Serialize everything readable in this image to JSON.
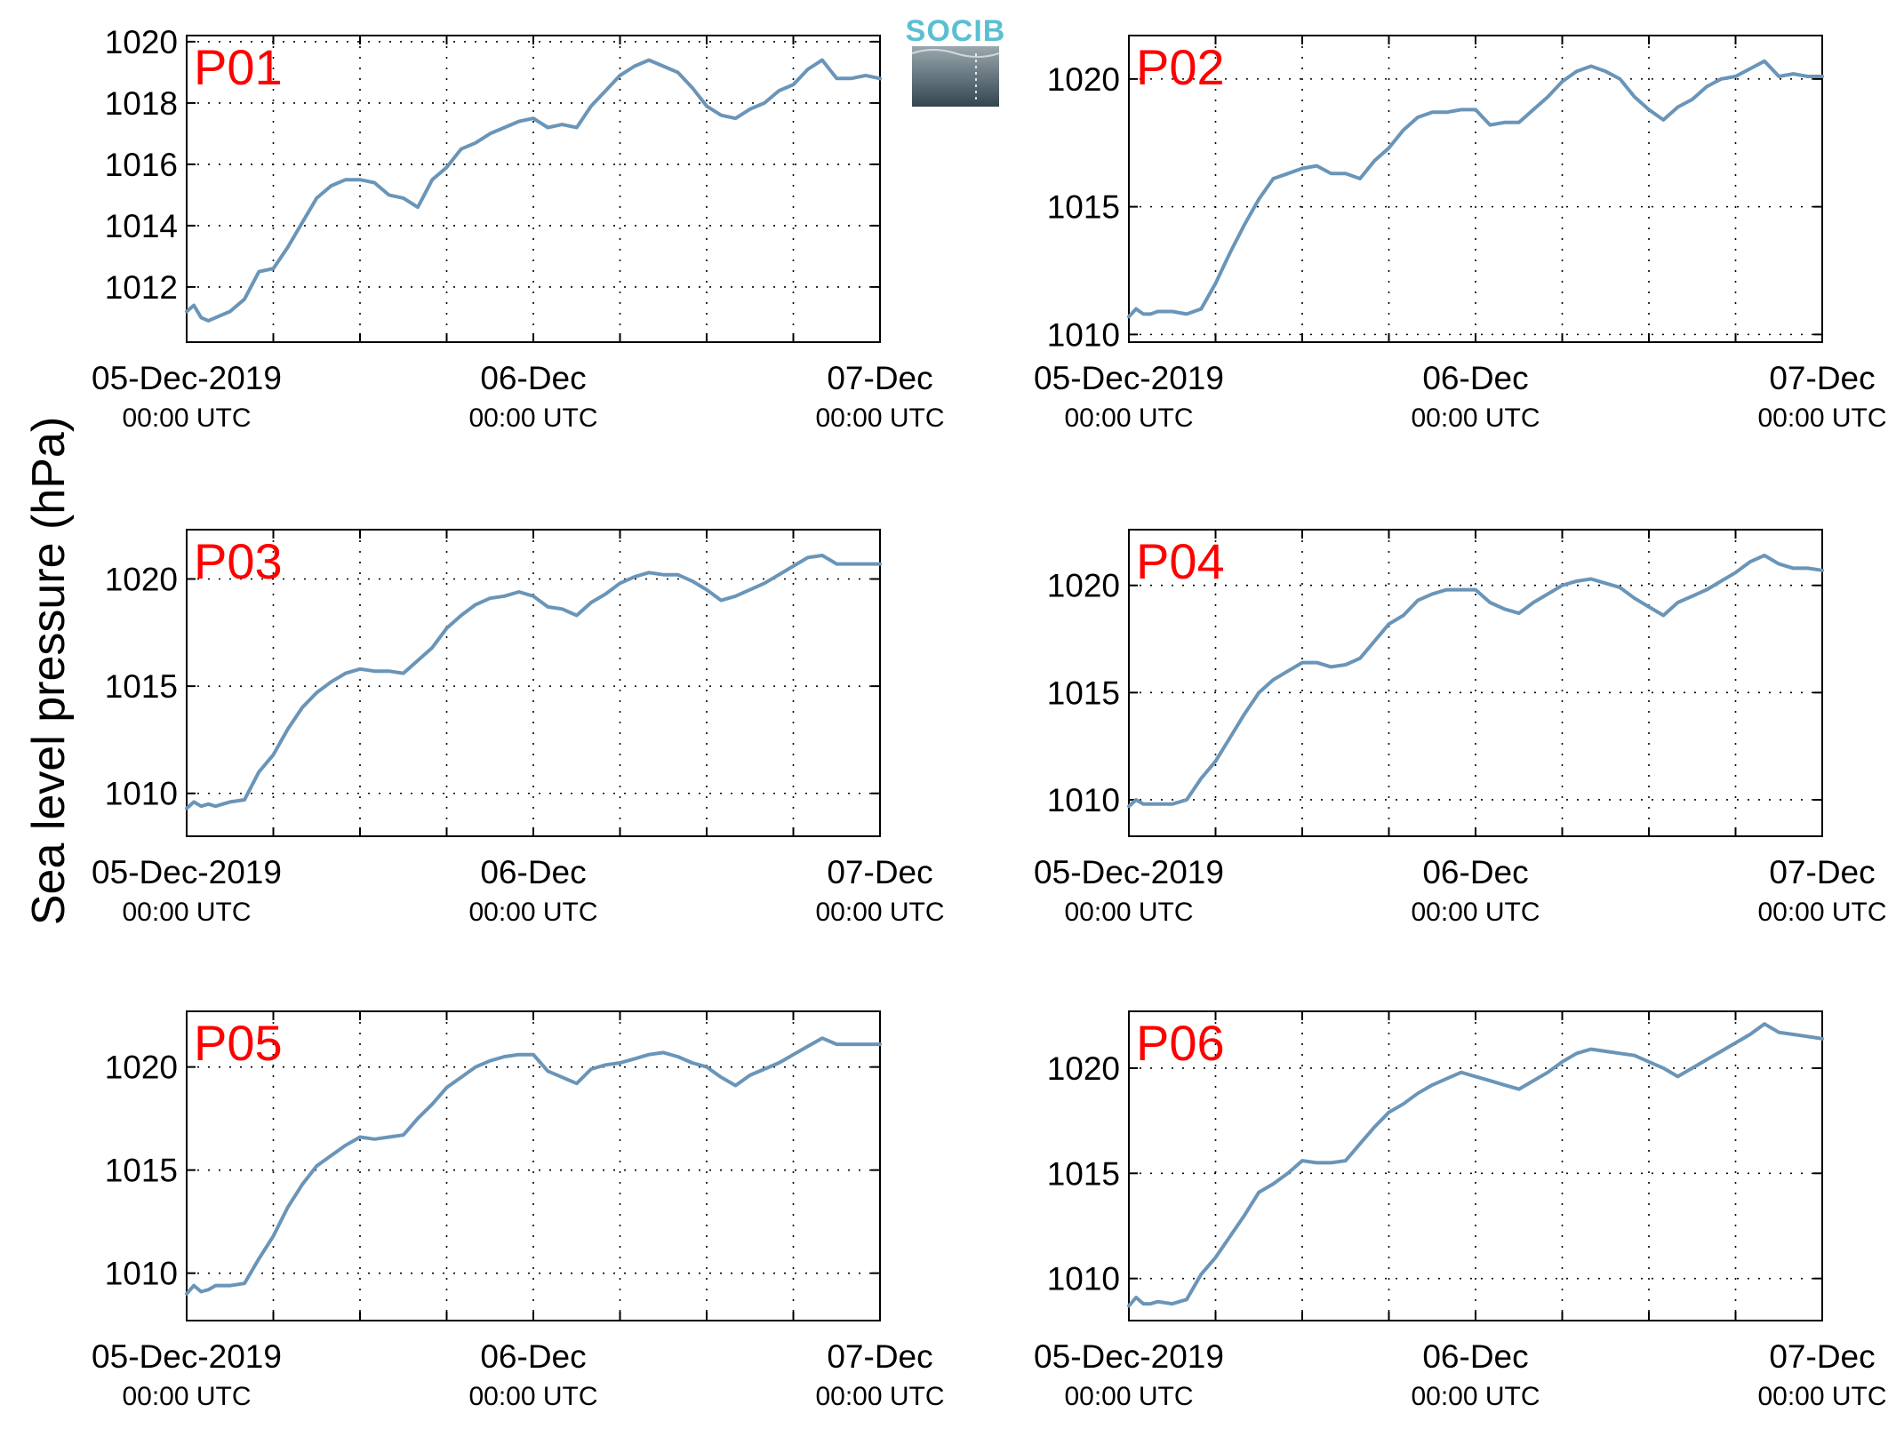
{
  "figure": {
    "ylabel": "Sea level pressure (hPa)",
    "line_color": "#6a95b8",
    "panel_label_color": "#ff0000"
  },
  "logo": {
    "text": "SOCIB",
    "text_color": "#5bbfd2",
    "gradient_top": "#9aa7ae",
    "gradient_bottom": "#33454f"
  },
  "chart_data": [
    {
      "type": "line",
      "label": "P01",
      "xlim": [
        0,
        48
      ],
      "ylim": [
        1010.2,
        1020.2
      ],
      "yticks": [
        1012,
        1014,
        1016,
        1018,
        1020
      ],
      "xticks": [
        {
          "x": 0,
          "line1": "05-Dec-2019",
          "line2": "00:00 UTC"
        },
        {
          "x": 24,
          "line1": "06-Dec",
          "line2": "00:00 UTC"
        },
        {
          "x": 48,
          "line1": "07-Dec",
          "line2": "00:00 UTC"
        }
      ],
      "x_gridlines": [
        6,
        12,
        18,
        24,
        30,
        36,
        42
      ],
      "grid": true,
      "series": [
        {
          "x": [
            0,
            0.5,
            1,
            1.5,
            2,
            3,
            4,
            5,
            6,
            7,
            8,
            9,
            10,
            11,
            12,
            13,
            14,
            15,
            16,
            17,
            18,
            19,
            20,
            21,
            22,
            23,
            24,
            25,
            26,
            27,
            28,
            29,
            30,
            31,
            32,
            33,
            34,
            35,
            36,
            37,
            38,
            39,
            40,
            41,
            42,
            43,
            44,
            45,
            46,
            47,
            48
          ],
          "values": [
            1011.2,
            1011.4,
            1011.0,
            1010.9,
            1011.0,
            1011.2,
            1011.6,
            1012.5,
            1012.6,
            1013.3,
            1014.1,
            1014.9,
            1015.3,
            1015.5,
            1015.5,
            1015.4,
            1015.0,
            1014.9,
            1014.6,
            1015.5,
            1015.9,
            1016.5,
            1016.7,
            1017.0,
            1017.2,
            1017.4,
            1017.5,
            1017.2,
            1017.3,
            1017.2,
            1017.9,
            1018.4,
            1018.9,
            1019.2,
            1019.4,
            1019.2,
            1019.0,
            1018.5,
            1017.9,
            1017.6,
            1017.5,
            1017.8,
            1018.0,
            1018.4,
            1018.6,
            1019.1,
            1019.4,
            1018.8,
            1018.8,
            1018.9,
            1018.8
          ]
        }
      ]
    },
    {
      "type": "line",
      "label": "P02",
      "xlim": [
        0,
        48
      ],
      "ylim": [
        1009.7,
        1021.7
      ],
      "yticks": [
        1010,
        1015,
        1020
      ],
      "xticks": [
        {
          "x": 0,
          "line1": "05-Dec-2019",
          "line2": "00:00 UTC"
        },
        {
          "x": 24,
          "line1": "06-Dec",
          "line2": "00:00 UTC"
        },
        {
          "x": 48,
          "line1": "07-Dec",
          "line2": "00:00 UTC"
        }
      ],
      "x_gridlines": [
        6,
        12,
        18,
        24,
        30,
        36,
        42
      ],
      "grid": true,
      "series": [
        {
          "x": [
            0,
            0.5,
            1,
            1.5,
            2,
            3,
            4,
            5,
            6,
            7,
            8,
            9,
            10,
            11,
            12,
            13,
            14,
            15,
            16,
            17,
            18,
            19,
            20,
            21,
            22,
            23,
            24,
            25,
            26,
            27,
            28,
            29,
            30,
            31,
            32,
            33,
            34,
            35,
            36,
            37,
            38,
            39,
            40,
            41,
            42,
            43,
            44,
            45,
            46,
            47,
            48
          ],
          "values": [
            1010.7,
            1011.0,
            1010.8,
            1010.8,
            1010.9,
            1010.9,
            1010.8,
            1011.0,
            1012.0,
            1013.2,
            1014.3,
            1015.3,
            1016.1,
            1016.3,
            1016.5,
            1016.6,
            1016.3,
            1016.3,
            1016.1,
            1016.8,
            1017.3,
            1018.0,
            1018.5,
            1018.7,
            1018.7,
            1018.8,
            1018.8,
            1018.2,
            1018.3,
            1018.3,
            1018.8,
            1019.3,
            1019.9,
            1020.3,
            1020.5,
            1020.3,
            1020.0,
            1019.3,
            1018.8,
            1018.4,
            1018.9,
            1019.2,
            1019.7,
            1020.0,
            1020.1,
            1020.4,
            1020.7,
            1020.1,
            1020.2,
            1020.1,
            1020.1
          ]
        }
      ]
    },
    {
      "type": "line",
      "label": "P03",
      "xlim": [
        0,
        48
      ],
      "ylim": [
        1008,
        1022.3
      ],
      "yticks": [
        1010,
        1015,
        1020
      ],
      "xticks": [
        {
          "x": 0,
          "line1": "05-Dec-2019",
          "line2": "00:00 UTC"
        },
        {
          "x": 24,
          "line1": "06-Dec",
          "line2": "00:00 UTC"
        },
        {
          "x": 48,
          "line1": "07-Dec",
          "line2": "00:00 UTC"
        }
      ],
      "x_gridlines": [
        6,
        12,
        18,
        24,
        30,
        36,
        42
      ],
      "grid": true,
      "series": [
        {
          "x": [
            0,
            0.5,
            1,
            1.5,
            2,
            3,
            4,
            5,
            6,
            7,
            8,
            9,
            10,
            11,
            12,
            13,
            14,
            15,
            16,
            17,
            18,
            19,
            20,
            21,
            22,
            23,
            24,
            25,
            26,
            27,
            28,
            29,
            30,
            31,
            32,
            33,
            34,
            35,
            36,
            37,
            38,
            39,
            40,
            41,
            42,
            43,
            44,
            45,
            46,
            47,
            48
          ],
          "values": [
            1009.3,
            1009.6,
            1009.4,
            1009.5,
            1009.4,
            1009.6,
            1009.7,
            1011.0,
            1011.8,
            1013.0,
            1014.0,
            1014.7,
            1015.2,
            1015.6,
            1015.8,
            1015.7,
            1015.7,
            1015.6,
            1016.2,
            1016.8,
            1017.7,
            1018.3,
            1018.8,
            1019.1,
            1019.2,
            1019.4,
            1019.2,
            1018.7,
            1018.6,
            1018.3,
            1018.9,
            1019.3,
            1019.8,
            1020.1,
            1020.3,
            1020.2,
            1020.2,
            1019.9,
            1019.5,
            1019.0,
            1019.2,
            1019.5,
            1019.8,
            1020.2,
            1020.6,
            1021.0,
            1021.1,
            1020.7,
            1020.7,
            1020.7,
            1020.7
          ]
        }
      ]
    },
    {
      "type": "line",
      "label": "P04",
      "xlim": [
        0,
        48
      ],
      "ylim": [
        1008.3,
        1022.6
      ],
      "yticks": [
        1010,
        1015,
        1020
      ],
      "xticks": [
        {
          "x": 0,
          "line1": "05-Dec-2019",
          "line2": "00:00 UTC"
        },
        {
          "x": 24,
          "line1": "06-Dec",
          "line2": "00:00 UTC"
        },
        {
          "x": 48,
          "line1": "07-Dec",
          "line2": "00:00 UTC"
        }
      ],
      "x_gridlines": [
        6,
        12,
        18,
        24,
        30,
        36,
        42
      ],
      "grid": true,
      "series": [
        {
          "x": [
            0,
            0.5,
            1,
            1.5,
            2,
            3,
            4,
            5,
            6,
            7,
            8,
            9,
            10,
            11,
            12,
            13,
            14,
            15,
            16,
            17,
            18,
            19,
            20,
            21,
            22,
            23,
            24,
            25,
            26,
            27,
            28,
            29,
            30,
            31,
            32,
            33,
            34,
            35,
            36,
            37,
            38,
            39,
            40,
            41,
            42,
            43,
            44,
            45,
            46,
            47,
            48
          ],
          "values": [
            1009.7,
            1010.0,
            1009.8,
            1009.8,
            1009.8,
            1009.8,
            1010.0,
            1011.0,
            1011.8,
            1012.9,
            1014.0,
            1015.0,
            1015.6,
            1016.0,
            1016.4,
            1016.4,
            1016.2,
            1016.3,
            1016.6,
            1017.4,
            1018.2,
            1018.6,
            1019.3,
            1019.6,
            1019.8,
            1019.8,
            1019.8,
            1019.2,
            1018.9,
            1018.7,
            1019.2,
            1019.6,
            1020.0,
            1020.2,
            1020.3,
            1020.1,
            1019.9,
            1019.4,
            1019.0,
            1018.6,
            1019.2,
            1019.5,
            1019.8,
            1020.2,
            1020.6,
            1021.1,
            1021.4,
            1021.0,
            1020.8,
            1020.8,
            1020.7
          ]
        }
      ]
    },
    {
      "type": "line",
      "label": "P05",
      "xlim": [
        0,
        48
      ],
      "ylim": [
        1007.7,
        1022.7
      ],
      "yticks": [
        1010,
        1015,
        1020
      ],
      "xticks": [
        {
          "x": 0,
          "line1": "05-Dec-2019",
          "line2": "00:00 UTC"
        },
        {
          "x": 24,
          "line1": "06-Dec",
          "line2": "00:00 UTC"
        },
        {
          "x": 48,
          "line1": "07-Dec",
          "line2": "00:00 UTC"
        }
      ],
      "x_gridlines": [
        6,
        12,
        18,
        24,
        30,
        36,
        42
      ],
      "grid": true,
      "series": [
        {
          "x": [
            0,
            0.5,
            1,
            1.5,
            2,
            3,
            4,
            5,
            6,
            7,
            8,
            9,
            10,
            11,
            12,
            13,
            14,
            15,
            16,
            17,
            18,
            19,
            20,
            21,
            22,
            23,
            24,
            25,
            26,
            27,
            28,
            29,
            30,
            31,
            32,
            33,
            34,
            35,
            36,
            37,
            38,
            39,
            40,
            41,
            42,
            43,
            44,
            45,
            46,
            47,
            48
          ],
          "values": [
            1009.0,
            1009.4,
            1009.1,
            1009.2,
            1009.4,
            1009.4,
            1009.5,
            1010.7,
            1011.8,
            1013.2,
            1014.3,
            1015.2,
            1015.7,
            1016.2,
            1016.6,
            1016.5,
            1016.6,
            1016.7,
            1017.5,
            1018.2,
            1019.0,
            1019.5,
            1020.0,
            1020.3,
            1020.5,
            1020.6,
            1020.6,
            1019.8,
            1019.5,
            1019.2,
            1019.9,
            1020.1,
            1020.2,
            1020.4,
            1020.6,
            1020.7,
            1020.5,
            1020.2,
            1020.0,
            1019.5,
            1019.1,
            1019.6,
            1019.9,
            1020.2,
            1020.6,
            1021.0,
            1021.4,
            1021.1,
            1021.1,
            1021.1,
            1021.1
          ]
        }
      ]
    },
    {
      "type": "line",
      "label": "P06",
      "xlim": [
        0,
        48
      ],
      "ylim": [
        1008,
        1022.7
      ],
      "yticks": [
        1010,
        1015,
        1020
      ],
      "xticks": [
        {
          "x": 0,
          "line1": "05-Dec-2019",
          "line2": "00:00 UTC"
        },
        {
          "x": 24,
          "line1": "06-Dec",
          "line2": "00:00 UTC"
        },
        {
          "x": 48,
          "line1": "07-Dec",
          "line2": "00:00 UTC"
        }
      ],
      "x_gridlines": [
        6,
        12,
        18,
        24,
        30,
        36,
        42
      ],
      "grid": true,
      "series": [
        {
          "x": [
            0,
            0.5,
            1,
            1.5,
            2,
            3,
            4,
            5,
            6,
            7,
            8,
            9,
            10,
            11,
            12,
            13,
            14,
            15,
            16,
            17,
            18,
            19,
            20,
            21,
            22,
            23,
            24,
            25,
            26,
            27,
            28,
            29,
            30,
            31,
            32,
            33,
            34,
            35,
            36,
            37,
            38,
            39,
            40,
            41,
            42,
            43,
            44,
            45,
            46,
            47,
            48
          ],
          "values": [
            1008.7,
            1009.1,
            1008.8,
            1008.8,
            1008.9,
            1008.8,
            1009.0,
            1010.2,
            1011.0,
            1012.0,
            1013.0,
            1014.1,
            1014.5,
            1015.0,
            1015.6,
            1015.5,
            1015.5,
            1015.6,
            1016.4,
            1017.2,
            1017.9,
            1018.3,
            1018.8,
            1019.2,
            1019.5,
            1019.8,
            1019.6,
            1019.4,
            1019.2,
            1019.0,
            1019.4,
            1019.8,
            1020.3,
            1020.7,
            1020.9,
            1020.8,
            1020.7,
            1020.6,
            1020.3,
            1020.0,
            1019.6,
            1020.0,
            1020.4,
            1020.8,
            1021.2,
            1021.6,
            1022.1,
            1021.7,
            1021.6,
            1021.5,
            1021.4
          ]
        }
      ]
    }
  ]
}
